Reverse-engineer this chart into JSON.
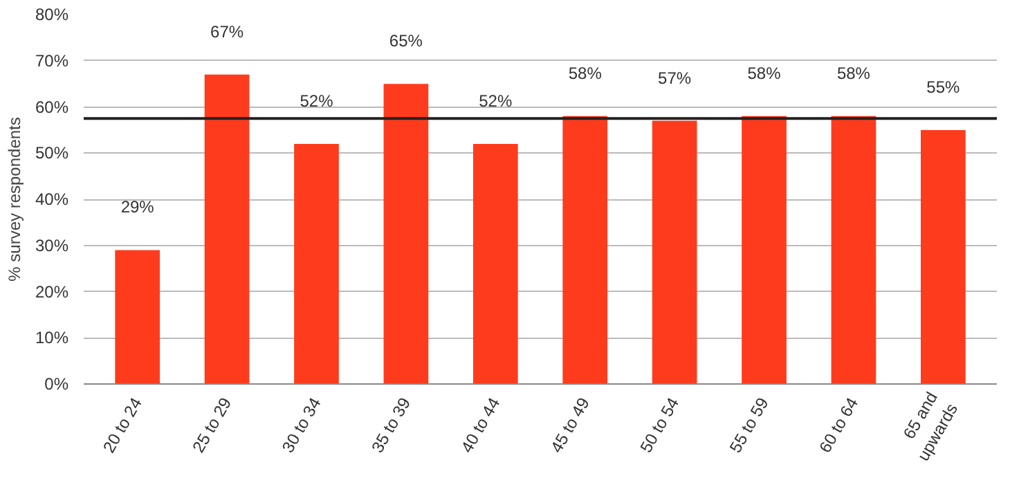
{
  "chart_data": {
    "type": "bar",
    "ylabel": "% survey respondents",
    "categories": [
      "20 to 24",
      "25 to 29",
      "30 to 34",
      "35 to 39",
      "40 to 44",
      "45 to 49",
      "50 to 54",
      "55 to 59",
      "60 to 64",
      "65 and\nupwards"
    ],
    "values": [
      29,
      67,
      52,
      65,
      52,
      58,
      57,
      58,
      58,
      55
    ],
    "value_labels": [
      "29%",
      "67%",
      "52%",
      "65%",
      "52%",
      "58%",
      "57%",
      "58%",
      "58%",
      "55%"
    ],
    "color": "#ff3b1d",
    "ylim": [
      0,
      80
    ],
    "yticks": [
      {
        "value": 0,
        "label": "0%"
      },
      {
        "value": 10,
        "label": "10%"
      },
      {
        "value": 20,
        "label": "20%"
      },
      {
        "value": 30,
        "label": "30%"
      },
      {
        "value": 40,
        "label": "40%"
      },
      {
        "value": 50,
        "label": "50%"
      },
      {
        "value": 60,
        "label": "60%"
      },
      {
        "value": 70,
        "label": "70%"
      },
      {
        "value": 80,
        "label": "80%"
      }
    ],
    "grid": "y",
    "ref_lines": [
      {
        "axis": "y",
        "value": 57.5,
        "color": "#222222"
      }
    ]
  }
}
